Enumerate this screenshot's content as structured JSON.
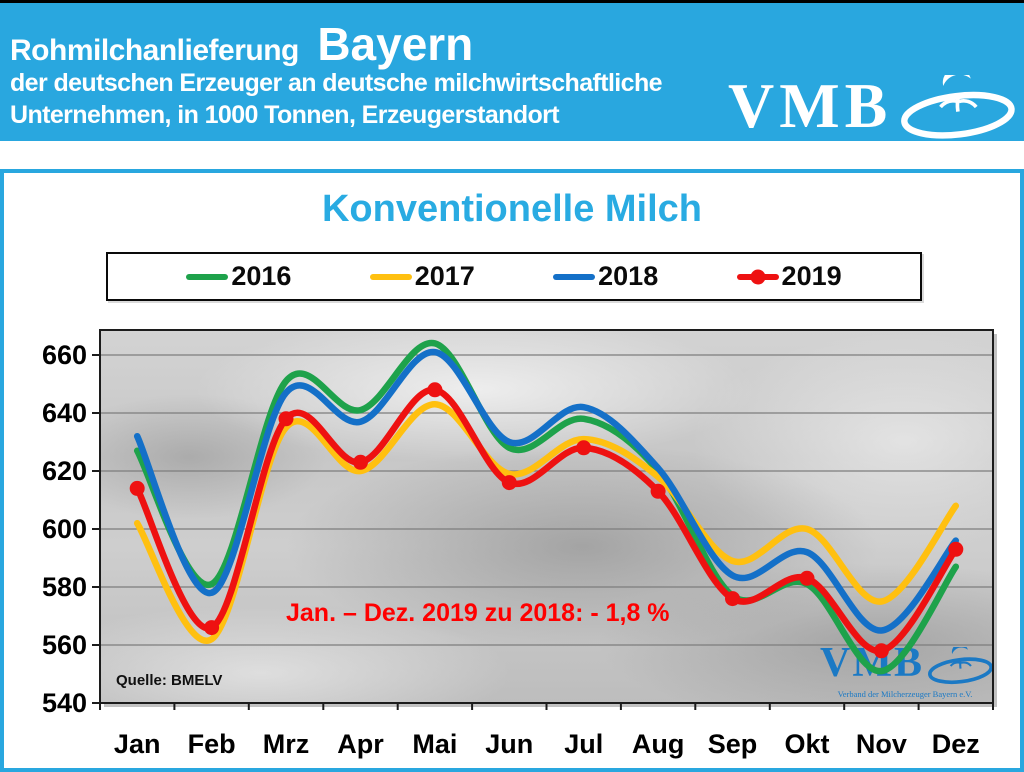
{
  "header": {
    "bg_color": "#29A7DF",
    "title_prefix": "Rohmilchanlieferung",
    "title_region": "Bayern",
    "subtitle_line1": "der deutschen Erzeuger an deutsche milchwirtschaftliche",
    "subtitle_line2": "Unternehmen, in 1000 Tonnen, Erzeugerstandort",
    "logo_text": "VMB"
  },
  "panel": {
    "chart_title": "Konventionelle Milch",
    "title_color": "#29ABE2",
    "annotation": "Jan. – Dez. 2019 zu 2018: - 1,8 %",
    "annotation_color": "#FF0000",
    "source_note": "Quelle: BMELV",
    "watermark": {
      "logo_text": "VMB",
      "sub_text": "Verband der Milcherzeuger Bayern e.V.",
      "color": "#1B79C4"
    }
  },
  "chart_data": {
    "type": "line",
    "title": "Konventionelle Milch",
    "xlabel": "",
    "ylabel": "1000 Tonnen",
    "categories": [
      "Jan",
      "Feb",
      "Mrz",
      "Apr",
      "Mai",
      "Jun",
      "Jul",
      "Aug",
      "Sep",
      "Okt",
      "Nov",
      "Dez"
    ],
    "series": [
      {
        "name": "2016",
        "color": "#1EA24B",
        "marker": false,
        "values": [
          627,
          581,
          651,
          641,
          664,
          628,
          638,
          620,
          577,
          581,
          551,
          587
        ]
      },
      {
        "name": "2017",
        "color": "#FFC010",
        "marker": false,
        "values": [
          602,
          562,
          635,
          620,
          643,
          619,
          631,
          618,
          589,
          600,
          575,
          608
        ]
      },
      {
        "name": "2018",
        "color": "#1470C8",
        "marker": false,
        "values": [
          632,
          578,
          647,
          637,
          661,
          630,
          642,
          621,
          584,
          592,
          565,
          596
        ]
      },
      {
        "name": "2019",
        "color": "#EE1111",
        "marker": true,
        "values": [
          614,
          566,
          638,
          623,
          648,
          616,
          628,
          613,
          576,
          583,
          558,
          593
        ]
      }
    ],
    "ylim": [
      540,
      668
    ],
    "yticks": [
      660,
      640,
      620,
      600,
      580,
      560,
      540
    ],
    "grid": true,
    "legend_position": "top",
    "smoothed_lines": true
  }
}
